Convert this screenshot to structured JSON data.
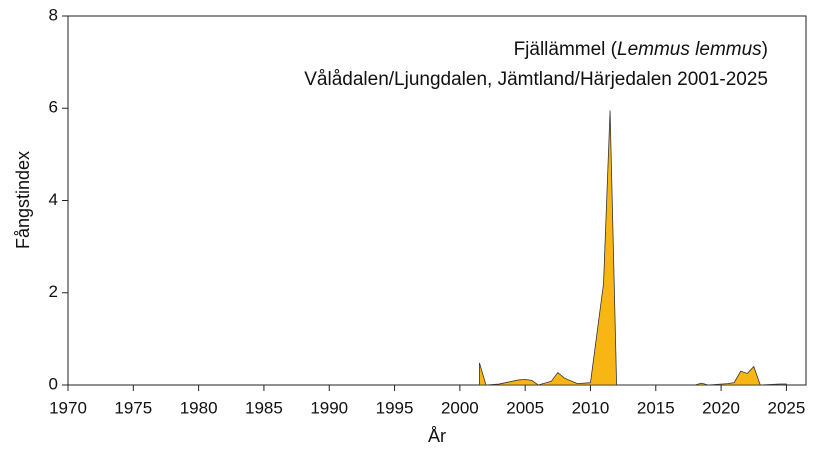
{
  "chart_data": {
    "type": "area",
    "title": [
      "Fjällämmel (",
      "Lemmus lemmus",
      ")"
    ],
    "subtitle": "Vålådalen/Ljungdalen, Jämtland/Härjedalen 2001-2025",
    "xlabel": "År",
    "ylabel": "Fångstindex",
    "x": [
      2001.5,
      2002,
      2003,
      2004.5,
      2005,
      2005.5,
      2006,
      2007,
      2007.5,
      2008,
      2009,
      2010,
      2011,
      2011.5,
      2012,
      2018,
      2018.5,
      2019,
      2020.5,
      2021,
      2021.5,
      2022,
      2022.5,
      2023,
      2024.5,
      2025
    ],
    "series": [
      {
        "name": "Fångstindex",
        "color": "#f7b614",
        "values": [
          0.48,
          0,
          0.02,
          0.11,
          0.12,
          0.1,
          0,
          0.08,
          0.27,
          0.15,
          0.03,
          0.05,
          2.2,
          5.95,
          0,
          0,
          0.04,
          0,
          0.03,
          0.05,
          0.3,
          0.25,
          0.4,
          0,
          0.02,
          0.02
        ]
      }
    ],
    "xlim": [
      1970,
      2026.5
    ],
    "ylim": [
      0,
      8
    ],
    "xticks": [
      1970,
      1975,
      1980,
      1985,
      1990,
      1995,
      2000,
      2005,
      2010,
      2015,
      2020,
      2025
    ],
    "yticks": [
      0,
      2,
      4,
      6,
      8
    ]
  }
}
